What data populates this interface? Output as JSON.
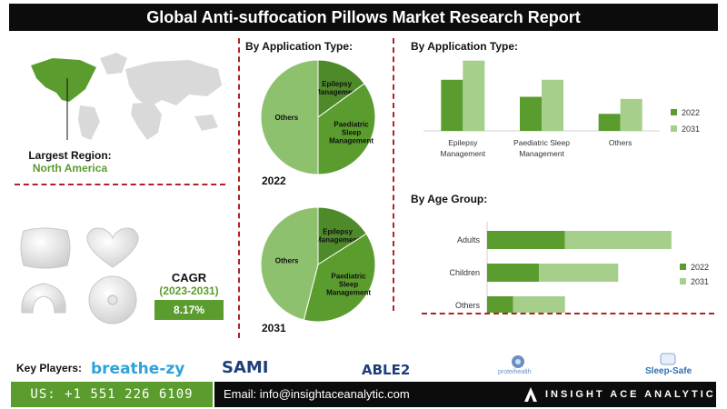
{
  "header": {
    "title": "Global Anti-suffocation Pillows Market Research Report"
  },
  "region": {
    "label": "Largest Region:",
    "value": "North America"
  },
  "cagr": {
    "title": "CAGR",
    "years": "(2023-2031)",
    "value": "8.17%"
  },
  "pie_section": {
    "title": "By Application Type:"
  },
  "bar_application": {
    "title": "By Application Type:"
  },
  "bar_age": {
    "title": "By Age Group:"
  },
  "key_players": {
    "label": "Key Players:",
    "logos": {
      "breathe": "breathe-zy",
      "sami": "SAMI",
      "able": "ABLE2",
      "protei": "proteihealth",
      "sleepsafe": "Sleep-Safe"
    }
  },
  "footer": {
    "phone": "US: +1 551 226 6109",
    "email": "Email: info@insightaceanalytic.com",
    "brand": "INSIGHT ACE ANALYTIC"
  },
  "colors": {
    "dark_green": "#5b9c2f",
    "mid_green": "#4e8a2a",
    "light_green": "#a6cf8b",
    "pie_light": "#8ec16e",
    "dash_red": "#b22222"
  },
  "chart_data": [
    {
      "type": "pie",
      "year_label": "2022",
      "slices": [
        {
          "label": "Epilepsy Management",
          "value": 15
        },
        {
          "label": "Paediatric Sleep Management",
          "value": 35
        },
        {
          "label": "Others",
          "value": 50
        }
      ]
    },
    {
      "type": "pie",
      "year_label": "2031",
      "slices": [
        {
          "label": "Epilepsy Management",
          "value": 16
        },
        {
          "label": "Paediatric Sleep Management",
          "value": 38
        },
        {
          "label": "Others",
          "value": 46
        }
      ]
    },
    {
      "type": "bar",
      "orientation": "vertical",
      "categories": [
        "Epilepsy Management",
        "Paediatric Sleep Management",
        "Others"
      ],
      "series": [
        {
          "name": "2022",
          "values": [
            48,
            32,
            16
          ]
        },
        {
          "name": "2031",
          "values": [
            66,
            48,
            30
          ]
        }
      ],
      "ylim": [
        0,
        70
      ],
      "legend": "right"
    },
    {
      "type": "bar",
      "orientation": "horizontal",
      "categories": [
        "Adults",
        "Children",
        "Others"
      ],
      "series": [
        {
          "name": "2022",
          "values": [
            60,
            40,
            20
          ]
        },
        {
          "name": "2031",
          "values": [
            82,
            61,
            40
          ]
        }
      ],
      "xlim": [
        0,
        140
      ],
      "legend": "right"
    }
  ]
}
